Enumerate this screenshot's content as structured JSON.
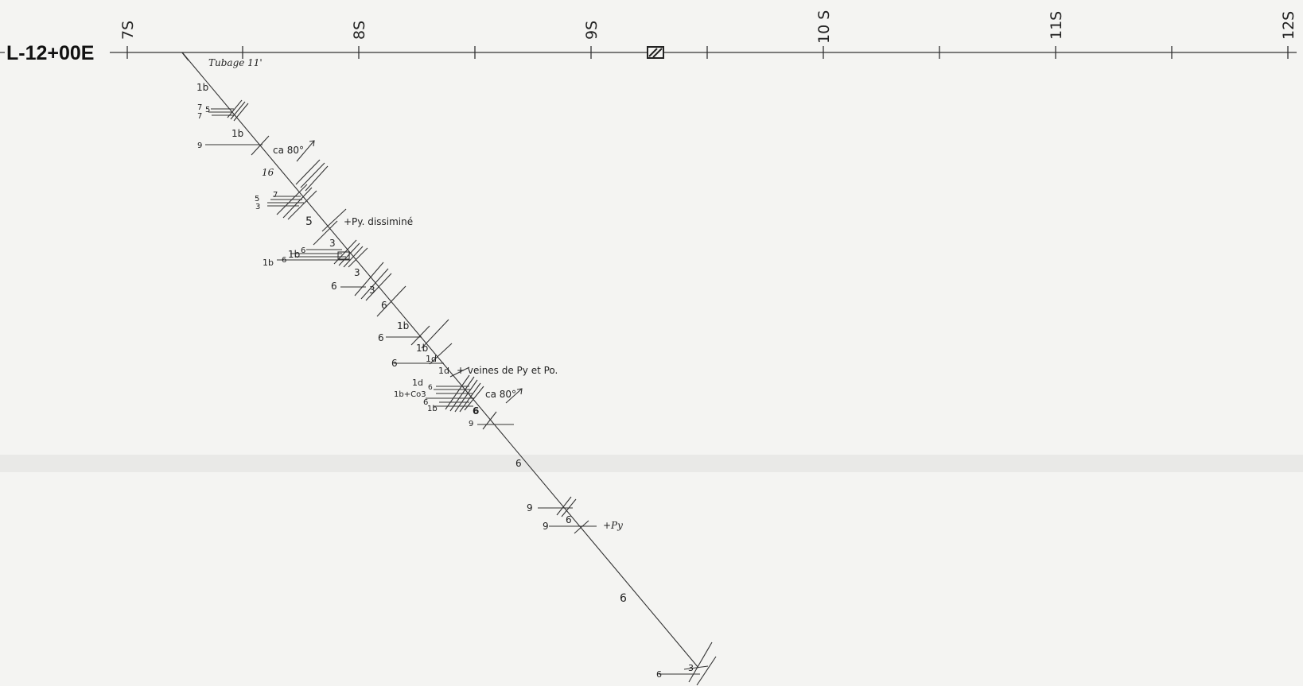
{
  "section": {
    "line_label": "L-12+00E",
    "stations": [
      "7S",
      "8S",
      "9S",
      "10 S",
      "11S",
      "12S"
    ],
    "casing_note": "Tubage 11'"
  },
  "annotations": {
    "a_1b": "1b",
    "a_7": "7",
    "a_5": "5",
    "a_7b": "7",
    "a_1b_2": "1b",
    "a_9": "9",
    "a_ca80": "ca 80°",
    "a_16": "16",
    "a_7c": "7",
    "a_5b": "5",
    "a_3": "3",
    "a_5c": "5",
    "a_pydiss": "+Py. dissiminé",
    "a_3b": "3",
    "a_6": "6",
    "a_1b_3": "1b",
    "a_6b": "6",
    "a_1b_4": "1b",
    "a_3c": "3",
    "a_6c": "6",
    "a_3d": "3",
    "a_6d": "6",
    "a_1b_5": "1b",
    "a_6e": "6",
    "a_1b_6": "1b",
    "a_6f": "6",
    "a_1d": "1d",
    "a_1d_2": "1d",
    "a_veines": "+ veines de Py et Po.",
    "a_1d_3": "1d",
    "a_6g": "6",
    "a_1bco3": "1b+Co3",
    "a_6h": "6",
    "a_1b_7": "1b",
    "a_ca80_2": "ca 80°",
    "a_6i": "6",
    "a_9b": "9",
    "a_6j": "6",
    "a_9c": "9",
    "a_9d": "9",
    "a_6k": "6",
    "a_py": "+Py",
    "a_6l": "6",
    "a_6m": "6",
    "a_3e": "3"
  }
}
